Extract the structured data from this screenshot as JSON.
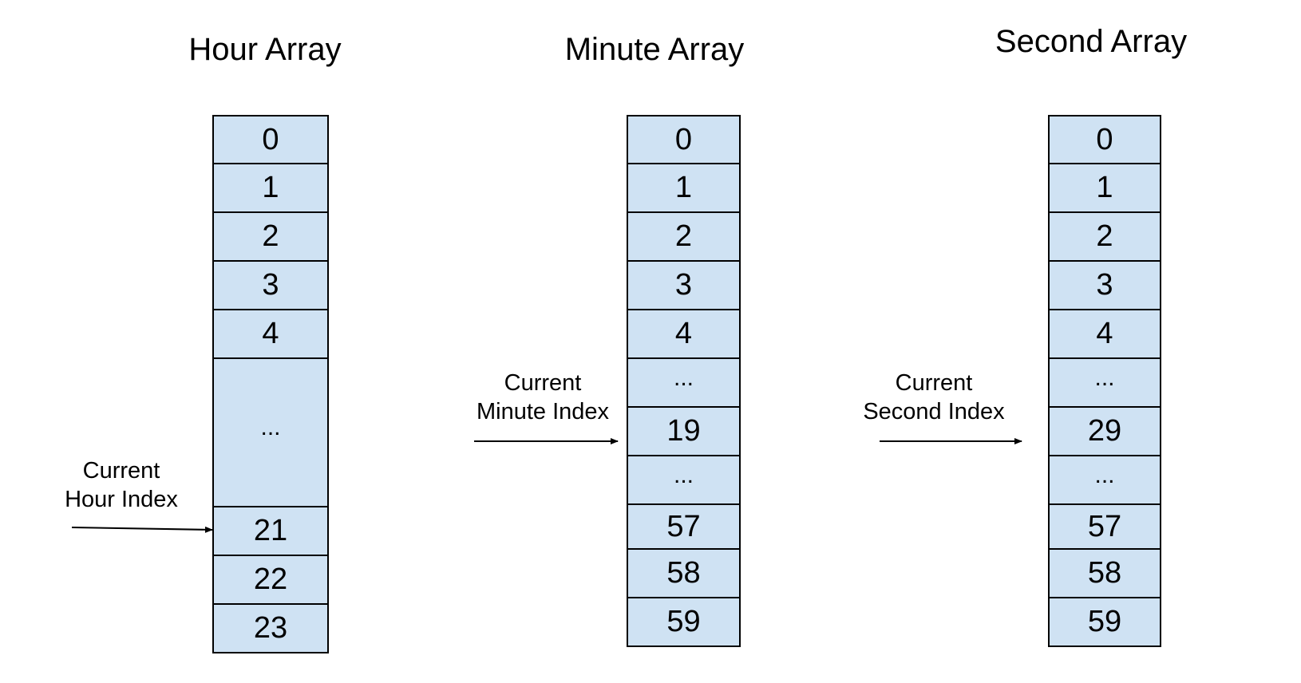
{
  "hour": {
    "title": "Hour Array",
    "cells": [
      "0",
      "1",
      "2",
      "3",
      "4",
      "...",
      "21",
      "22",
      "23"
    ],
    "pointer_label_line1": "Current",
    "pointer_label_line2": "Hour Index"
  },
  "minute": {
    "title": "Minute Array",
    "cells": [
      "0",
      "1",
      "2",
      "3",
      "4",
      "...",
      "19",
      "...",
      "57",
      "58",
      "59"
    ],
    "pointer_label_line1": "Current",
    "pointer_label_line2": "Minute Index"
  },
  "second": {
    "title": "Second Array",
    "cells": [
      "0",
      "1",
      "2",
      "3",
      "4",
      "...",
      "29",
      "...",
      "57",
      "58",
      "59"
    ],
    "pointer_label_line1": "Current",
    "pointer_label_line2": "Second Index"
  },
  "colors": {
    "cell_fill": "#cfe2f3",
    "stroke": "#000000"
  }
}
